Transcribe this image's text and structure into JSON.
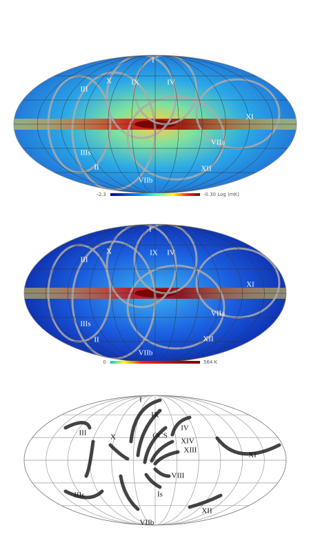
{
  "panels": [
    {
      "loops": [
        "I",
        "X",
        "IX",
        "IV",
        "III",
        "XI",
        "VIIa",
        "IIIs",
        "XII",
        "II",
        "VIIb"
      ],
      "colorbar": {
        "min_label": "-2.3",
        "max_label": "-0.30 Log (mK)"
      }
    },
    {
      "loops": [
        "I",
        "III",
        "X",
        "IX",
        "IV",
        "XI",
        "VIIa",
        "IIIs",
        "XII",
        "II",
        "VIIb"
      ],
      "colorbar": {
        "min_label": "0",
        "max_label": "564 K"
      }
    },
    {
      "loops": [
        "I",
        "IX",
        "IV",
        "III",
        "X",
        "OCS",
        "XIV",
        "XIII",
        "XI",
        "VIII",
        "IIIs",
        "Is",
        "XII",
        "VIIb"
      ]
    }
  ]
}
